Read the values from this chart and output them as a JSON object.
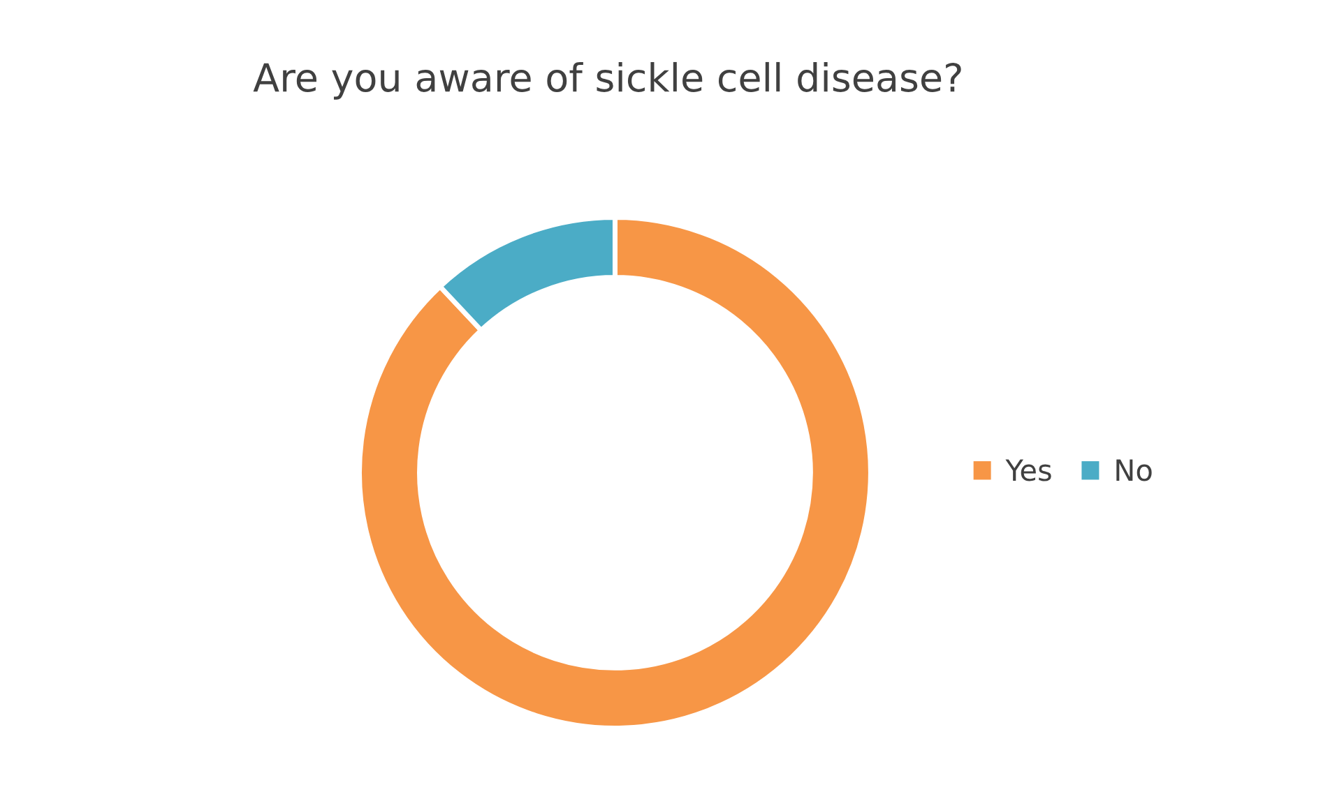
{
  "chart_data": {
    "type": "donut",
    "title": "Are you aware of sickle cell disease?",
    "categories": [
      "Yes",
      "No"
    ],
    "values": [
      88,
      12
    ],
    "colors": [
      "#f79646",
      "#4bacc6"
    ],
    "legend": "right"
  }
}
